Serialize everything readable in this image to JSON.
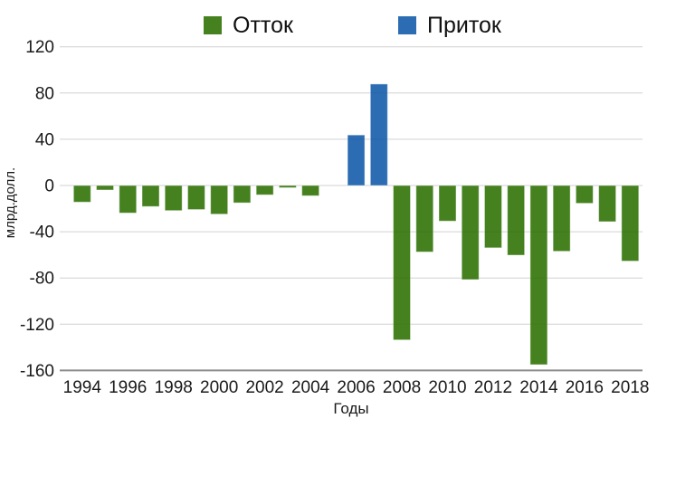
{
  "page": {
    "background": "#ffffff"
  },
  "legend": {
    "position": "top",
    "items": [
      {
        "label": "Отток",
        "color": "#45811F"
      },
      {
        "label": "Приток",
        "color": "#2B6CB3"
      }
    ]
  },
  "chart_data": {
    "type": "bar",
    "title": "",
    "xlabel": "Годы",
    "ylabel": "млрд.долл.",
    "ylim": [
      -160,
      120
    ],
    "yticks": [
      120,
      80,
      40,
      0,
      -40,
      -80,
      -120,
      -160
    ],
    "xtick_labels": [
      "1994",
      "1996",
      "1998",
      "2000",
      "2002",
      "2004",
      "2006",
      "2008",
      "2010",
      "2012",
      "2014",
      "2016",
      "2018"
    ],
    "grid": true,
    "legend_position": "top",
    "categories": [
      1994,
      1995,
      1996,
      1997,
      1998,
      1999,
      2000,
      2001,
      2002,
      2003,
      2004,
      2005,
      2006,
      2007,
      2008,
      2009,
      2010,
      2011,
      2012,
      2013,
      2014,
      2015,
      2016,
      2017,
      2018
    ],
    "series": [
      {
        "name": "Отток",
        "color": "#45811F",
        "values": [
          -14.4,
          -3.9,
          -23.8,
          -18.2,
          -21.7,
          -20.8,
          -24.8,
          -15.0,
          -8.1,
          -1.9,
          -8.9,
          0,
          null,
          null,
          -133.6,
          -57.5,
          -30.8,
          -81.4,
          -53.9,
          -60.3,
          -155.0,
          -56.9,
          -15.4,
          -31.3,
          -65.4
        ]
      },
      {
        "name": "Приток",
        "color": "#2B6CB3",
        "values": [
          null,
          null,
          null,
          null,
          null,
          null,
          null,
          null,
          null,
          null,
          null,
          null,
          43.7,
          87.8,
          null,
          null,
          null,
          null,
          null,
          null,
          null,
          null,
          null,
          null,
          null
        ]
      }
    ]
  },
  "style": {
    "grid_color": "#dcdcdc",
    "baseline_color": "#8c8c8c",
    "text_color": "#1a1a1a",
    "bar_edge": "#ffffff"
  }
}
